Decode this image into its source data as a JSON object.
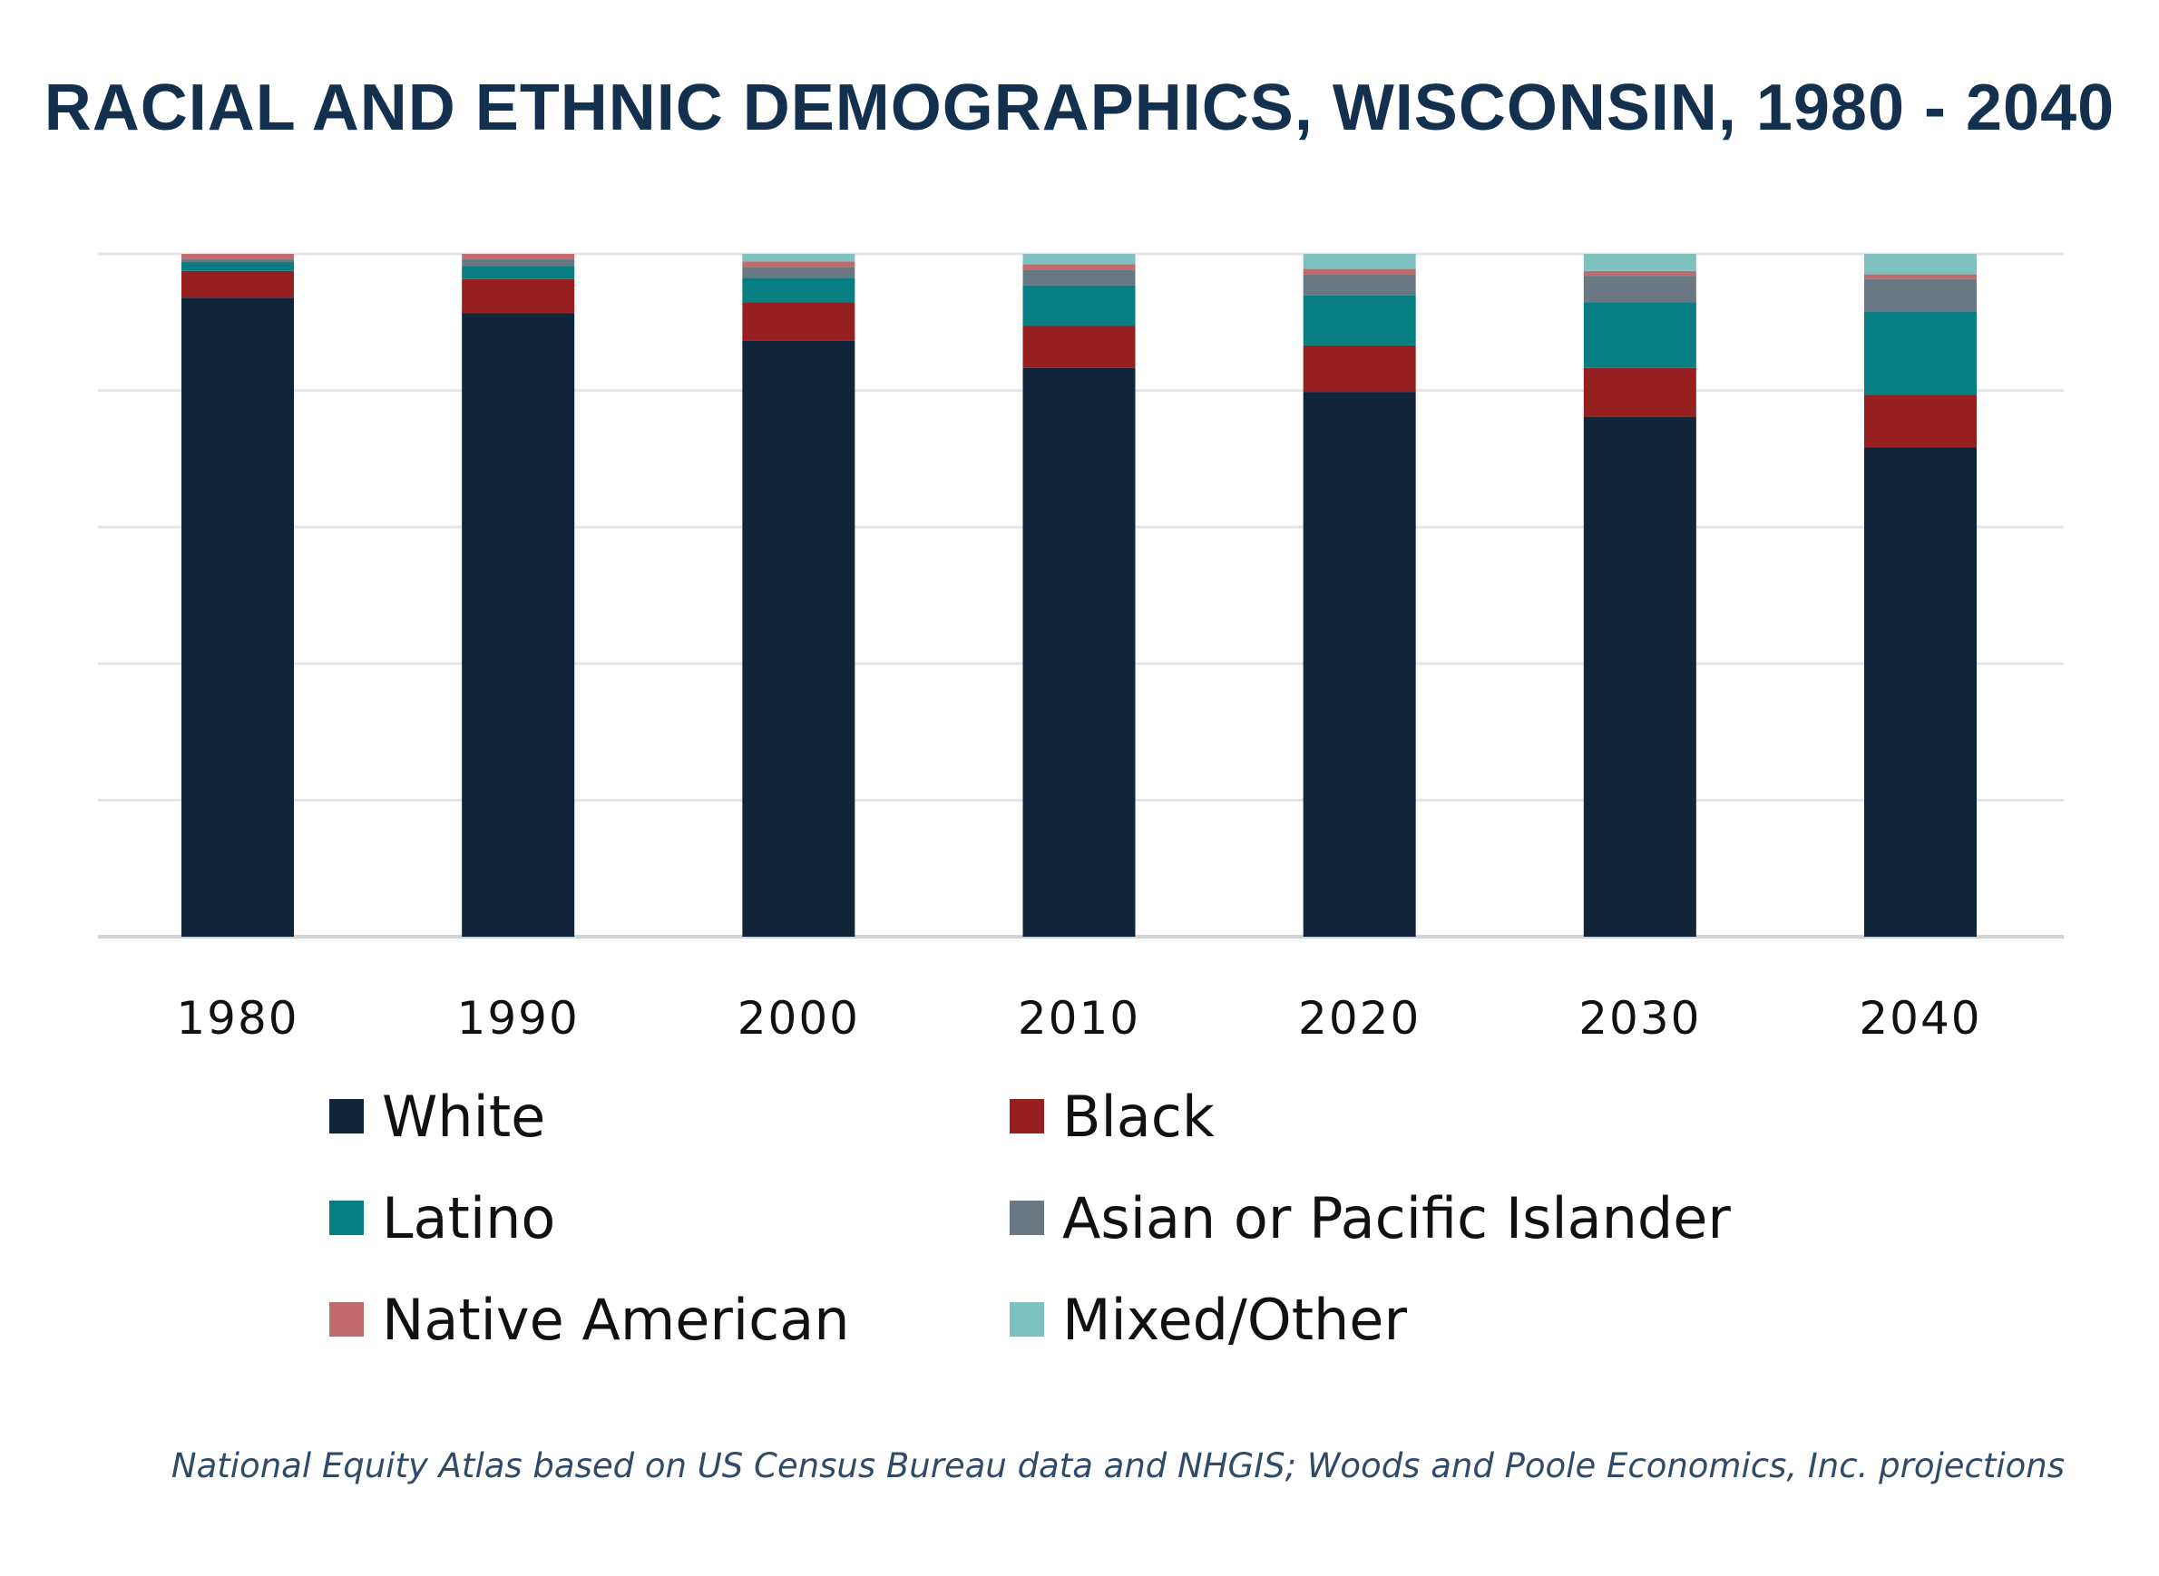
{
  "chart_data": {
    "type": "bar",
    "stacked": true,
    "title": "RACIAL AND ETHNIC DEMOGRAPHICS, WISCONSIN, 1980 - 2040",
    "xlabel": "",
    "ylabel": "",
    "ylim": [
      0,
      100
    ],
    "grid": true,
    "legend_position": "bottom",
    "categories": [
      "1980",
      "1990",
      "2000",
      "2010",
      "2020",
      "2030",
      "2040"
    ],
    "series": [
      {
        "name": "White",
        "color": "#10243a",
        "values": [
          93.6,
          91.3,
          87.3,
          83.3,
          79.8,
          76.1,
          71.7
        ]
      },
      {
        "name": "Black",
        "color": "#96201f",
        "values": [
          3.9,
          5.0,
          5.6,
          6.2,
          6.8,
          7.2,
          7.7
        ]
      },
      {
        "name": "Latino",
        "color": "#077e82",
        "values": [
          1.3,
          1.9,
          3.6,
          5.9,
          7.3,
          9.6,
          12.1
        ]
      },
      {
        "name": "Asian or Pacific Islander",
        "color": "#6a7883",
        "values": [
          0.5,
          1.1,
          1.6,
          2.3,
          3.1,
          3.9,
          4.8
        ]
      },
      {
        "name": "Native American",
        "color": "#c06a6c",
        "values": [
          0.7,
          0.7,
          0.8,
          0.8,
          0.8,
          0.7,
          0.7
        ]
      },
      {
        "name": "Mixed/Other",
        "color": "#7fc1c1",
        "values": [
          0.0,
          0.0,
          1.1,
          1.5,
          2.2,
          2.5,
          3.0
        ]
      }
    ]
  },
  "source": "National Equity Atlas based on US Census Bureau data and NHGIS; Woods and Poole Economics, Inc. projections"
}
